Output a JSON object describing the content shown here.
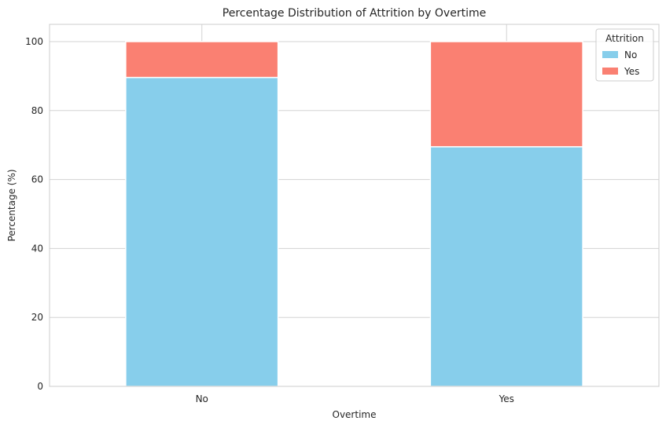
{
  "chart_data": {
    "type": "bar",
    "stacked": true,
    "title": "Percentage Distribution of Attrition by Overtime",
    "xlabel": "Overtime",
    "ylabel": "Percentage (%)",
    "categories": [
      "No",
      "Yes"
    ],
    "series": [
      {
        "name": "No",
        "values": [
          89.6,
          69.5
        ],
        "color": "#87ceeb"
      },
      {
        "name": "Yes",
        "values": [
          10.4,
          30.5
        ],
        "color": "#fa8072"
      }
    ],
    "ylim": [
      0,
      105
    ],
    "yticks": [
      0,
      20,
      40,
      60,
      80,
      100
    ],
    "grid": true,
    "legend": {
      "title": "Attrition",
      "placement": "top-right"
    }
  }
}
